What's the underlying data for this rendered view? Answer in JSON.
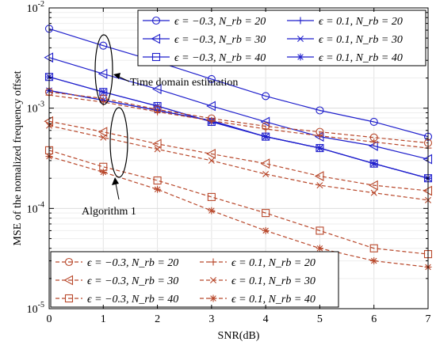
{
  "chart_data": {
    "type": "line",
    "xlabel": "SNR(dB)",
    "ylabel": "MSE of the nomalized frequency offset",
    "xlim": [
      0,
      7
    ],
    "ylim": [
      1e-05,
      0.01
    ],
    "yscale": "log",
    "grid": true,
    "x": [
      0,
      1,
      2,
      3,
      4,
      5,
      6,
      7
    ],
    "xticks": [
      "0",
      "1",
      "2",
      "3",
      "4",
      "5",
      "6",
      "7"
    ],
    "yticks": [
      {
        "value": 1e-05,
        "base": "10",
        "exp": "-5"
      },
      {
        "value": 0.0001,
        "base": "10",
        "exp": "-4"
      },
      {
        "value": 0.001,
        "base": "10",
        "exp": "-3"
      },
      {
        "value": 0.01,
        "base": "10",
        "exp": "-2"
      }
    ],
    "annotations": [
      "Time domain estimation",
      "Algorithm 1"
    ],
    "legends": [
      {
        "placement": "top-right",
        "entries": [
          "ϵ = −0.3, N_rb = 20",
          "ϵ = 0.1, N_rb = 20",
          "ϵ = −0.3, N_rb = 30",
          "ϵ = 0.1, N_rb = 30",
          "ϵ = −0.3, N_rb = 40",
          "ϵ = 0.1, N_rb = 40"
        ]
      },
      {
        "placement": "bottom-left",
        "entries": [
          "ϵ = −0.3, N_rb = 20",
          "ϵ = 0.1, N_rb = 20",
          "ϵ = −0.3, N_rb = 30",
          "ϵ = 0.1, N_rb = 30",
          "ϵ = −0.3, N_rb = 40",
          "ϵ = 0.1, N_rb = 40"
        ]
      }
    ],
    "series": [
      {
        "group": "time",
        "epsilon": "−0.3",
        "nrb": "20",
        "marker": "circle",
        "color": "#1f1fcc",
        "dash": "solid",
        "values": [
          0.0062,
          0.0042,
          0.0029,
          0.00195,
          0.00132,
          0.00095,
          0.00073,
          0.00052
        ]
      },
      {
        "group": "time",
        "epsilon": "0.1",
        "nrb": "20",
        "marker": "plus",
        "color": "#1f1fcc",
        "dash": "solid",
        "values": [
          0.0015,
          0.0012,
          0.00095,
          0.00075,
          0.00052,
          0.0004,
          0.00028,
          0.0002
        ]
      },
      {
        "group": "time",
        "epsilon": "−0.3",
        "nrb": "30",
        "marker": "triangle-left",
        "color": "#1f1fcc",
        "dash": "solid",
        "values": [
          0.0032,
          0.0022,
          0.00155,
          0.00105,
          0.00073,
          0.00052,
          0.00042,
          0.00031
        ]
      },
      {
        "group": "time",
        "epsilon": "0.1",
        "nrb": "30",
        "marker": "x",
        "color": "#1f1fcc",
        "dash": "solid",
        "values": [
          0.0015,
          0.0012,
          0.00095,
          0.00075,
          0.00052,
          0.0004,
          0.00028,
          0.0002
        ]
      },
      {
        "group": "time",
        "epsilon": "−0.3",
        "nrb": "40",
        "marker": "square",
        "color": "#1f1fcc",
        "dash": "solid",
        "values": [
          0.00205,
          0.00145,
          0.00105,
          0.00073,
          0.00052,
          0.0004,
          0.00028,
          0.0002
        ]
      },
      {
        "group": "time",
        "epsilon": "0.1",
        "nrb": "40",
        "marker": "asterisk",
        "color": "#1f1fcc",
        "dash": "solid",
        "values": [
          0.00205,
          0.00145,
          0.00105,
          0.00073,
          0.00052,
          0.0004,
          0.00028,
          0.0002
        ]
      },
      {
        "group": "alg1",
        "epsilon": "−0.3",
        "nrb": "20",
        "marker": "circle",
        "color": "#b8472a",
        "dash": "dashed",
        "values": [
          0.00145,
          0.00125,
          0.00097,
          0.00079,
          0.00066,
          0.00058,
          0.00051,
          0.00045
        ]
      },
      {
        "group": "alg1",
        "epsilon": "0.1",
        "nrb": "20",
        "marker": "plus",
        "color": "#b8472a",
        "dash": "dashed",
        "values": [
          0.00135,
          0.00115,
          0.00092,
          0.00075,
          0.00062,
          0.00053,
          0.00046,
          0.0004
        ]
      },
      {
        "group": "alg1",
        "epsilon": "−0.3",
        "nrb": "30",
        "marker": "triangle-left",
        "color": "#b8472a",
        "dash": "dashed",
        "values": [
          0.00074,
          0.00058,
          0.00044,
          0.00035,
          0.00028,
          0.00021,
          0.00017,
          0.00015
        ]
      },
      {
        "group": "alg1",
        "epsilon": "0.1",
        "nrb": "30",
        "marker": "x",
        "color": "#b8472a",
        "dash": "dashed",
        "values": [
          0.00067,
          0.00051,
          0.00039,
          0.0003,
          0.00022,
          0.00017,
          0.000143,
          0.000121
        ]
      },
      {
        "group": "alg1",
        "epsilon": "−0.3",
        "nrb": "40",
        "marker": "square",
        "color": "#b8472a",
        "dash": "dashed",
        "values": [
          0.00038,
          0.00026,
          0.00019,
          0.00013,
          9e-05,
          6e-05,
          4e-05,
          3.5e-05
        ]
      },
      {
        "group": "alg1",
        "epsilon": "0.1",
        "nrb": "40",
        "marker": "asterisk",
        "color": "#b8472a",
        "dash": "dashed",
        "values": [
          0.00033,
          0.00023,
          0.000155,
          9.5e-05,
          6e-05,
          4e-05,
          3e-05,
          2.6e-05
        ]
      }
    ]
  }
}
